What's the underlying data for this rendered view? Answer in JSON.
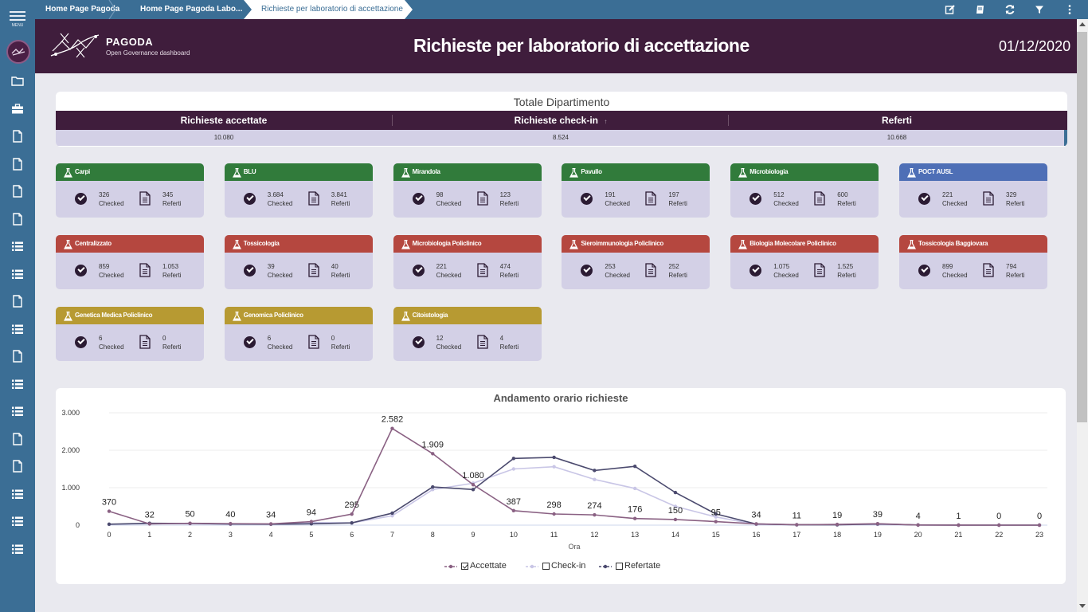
{
  "sidebar": {
    "menu_label": "MENU",
    "items": [
      "folder-icon",
      "briefcase-icon",
      "document-icon",
      "document-icon",
      "document-icon",
      "document-icon",
      "list-icon",
      "list-icon",
      "document-icon",
      "list-icon",
      "document-icon",
      "list-icon",
      "list-icon",
      "document-icon",
      "document-icon",
      "list-icon",
      "list-icon",
      "list-icon"
    ]
  },
  "breadcrumb": {
    "items": [
      "Home Page Pagoda",
      "Home Page Pagoda Labo...",
      "Richieste per laboratorio di accettazione"
    ]
  },
  "toolbar": {
    "icons": [
      "edit-icon",
      "book-icon",
      "refresh-icon",
      "filter-icon",
      "more-icon"
    ]
  },
  "header": {
    "brand": "PAGODA",
    "brand_sub": "Open Governance dashboard",
    "title": "Richieste per laboratorio di accettazione",
    "date": "01/12/2020"
  },
  "totale": {
    "title": "Totale Dipartimento",
    "columns": [
      "Richieste accettate",
      "Richieste check-in",
      "Referti"
    ],
    "sort_indicator": "↑",
    "values": [
      "10.080",
      "8.524",
      "10.668"
    ]
  },
  "labels": {
    "checked": "Checked",
    "referti": "Referti"
  },
  "colors": {
    "green": "#317b3b",
    "blue": "#4e6fb6",
    "red": "#b5473f",
    "gold": "#b79a32",
    "header_purple": "#3f1d3c",
    "sidebar_blue": "#3b6e95"
  },
  "cards": [
    {
      "name": "Carpi",
      "color": "green",
      "checked": "326",
      "referti": "345"
    },
    {
      "name": "BLU",
      "color": "green",
      "checked": "3.684",
      "referti": "3.841"
    },
    {
      "name": "Mirandola",
      "color": "green",
      "checked": "98",
      "referti": "123"
    },
    {
      "name": "Pavullo",
      "color": "green",
      "checked": "191",
      "referti": "197"
    },
    {
      "name": "Microbiologia",
      "color": "green",
      "checked": "512",
      "referti": "600"
    },
    {
      "name": "POCT AUSL",
      "color": "blue",
      "checked": "221",
      "referti": "329"
    },
    {
      "name": "Centralizzato",
      "color": "red",
      "checked": "859",
      "referti": "1.053"
    },
    {
      "name": "Tossicologia",
      "color": "red",
      "checked": "39",
      "referti": "40"
    },
    {
      "name": "Microbiologia Policlinico",
      "color": "red",
      "checked": "221",
      "referti": "474"
    },
    {
      "name": "Sieroimmunologia Policlinico",
      "color": "red",
      "checked": "253",
      "referti": "252"
    },
    {
      "name": "Biologia Molecolare Policlinico",
      "color": "red",
      "checked": "1.075",
      "referti": "1.525"
    },
    {
      "name": "Tossicologia Baggiovara",
      "color": "red",
      "checked": "899",
      "referti": "794"
    },
    {
      "name": "Genetica Medica Policlinico",
      "color": "gold",
      "checked": "6",
      "referti": "0"
    },
    {
      "name": "Genomica Policlinico",
      "color": "gold",
      "checked": "6",
      "referti": "0"
    },
    {
      "name": "Citoistologia",
      "color": "gold",
      "checked": "12",
      "referti": "4"
    }
  ],
  "chart_data": {
    "type": "line",
    "title": "Andamento orario richieste",
    "xlabel": "Ora",
    "ylabel": "",
    "x": [
      0,
      1,
      2,
      3,
      4,
      5,
      6,
      7,
      8,
      9,
      10,
      11,
      12,
      13,
      14,
      15,
      16,
      17,
      18,
      19,
      20,
      21,
      22,
      23
    ],
    "ylim": [
      0,
      3000
    ],
    "yticks": [
      "0",
      "1.000",
      "2.000",
      "3.000"
    ],
    "grid": true,
    "legend_position": "bottom",
    "series": [
      {
        "name": "Accettate",
        "color": "#8a6183",
        "checked": true,
        "show_labels": true,
        "labels": [
          "370",
          "32",
          "50",
          "40",
          "34",
          "94",
          "295",
          "2.582",
          "1.909",
          "1.080",
          "387",
          "298",
          "274",
          "176",
          "150",
          "95",
          "34",
          "11",
          "19",
          "39",
          "4",
          "1",
          "0",
          "0"
        ],
        "values": [
          370,
          32,
          50,
          40,
          34,
          94,
          295,
          2582,
          1909,
          1080,
          387,
          298,
          274,
          176,
          150,
          95,
          34,
          11,
          19,
          39,
          4,
          1,
          0,
          0
        ]
      },
      {
        "name": "Check-in",
        "color": "#c9c6e6",
        "checked": false,
        "show_labels": false,
        "values": [
          20,
          40,
          35,
          25,
          30,
          70,
          60,
          250,
          950,
          1120,
          1500,
          1560,
          1220,
          980,
          500,
          220,
          20,
          10,
          10,
          20,
          5,
          0,
          0,
          0
        ]
      },
      {
        "name": "Refertate",
        "color": "#4b4a6e",
        "checked": false,
        "show_labels": false,
        "values": [
          25,
          50,
          45,
          30,
          25,
          35,
          60,
          320,
          1020,
          950,
          1780,
          1810,
          1460,
          1570,
          870,
          300,
          30,
          10,
          10,
          30,
          5,
          0,
          0,
          0
        ]
      }
    ]
  }
}
